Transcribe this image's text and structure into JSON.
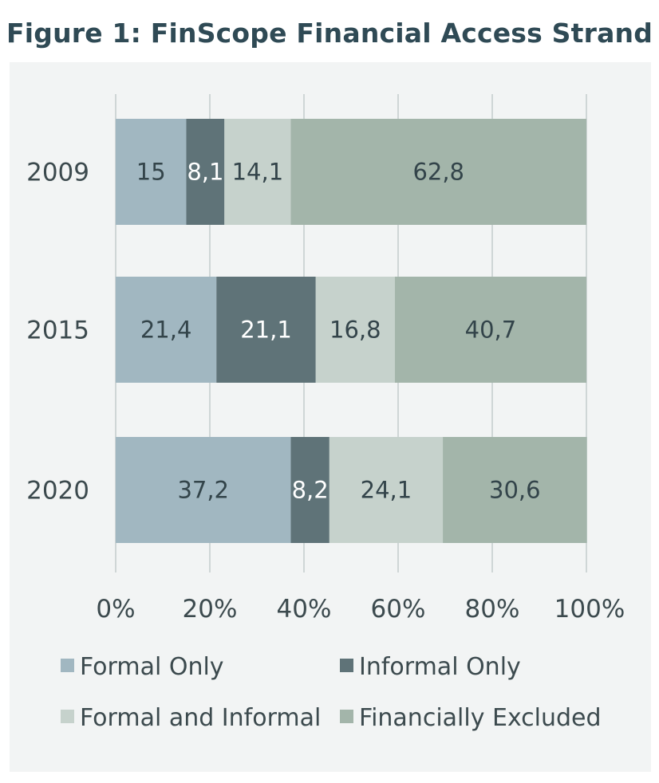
{
  "title": "Figure 1: FinScope Financial Access Strand",
  "chart_data": {
    "type": "bar",
    "orientation": "horizontal",
    "stacked": true,
    "categories": [
      "2009",
      "2015",
      "2020"
    ],
    "series": [
      {
        "name": "Formal Only",
        "color": "#a1b7c1",
        "label_color": "#33444a",
        "values": [
          15,
          21.4,
          37.2
        ],
        "labels": [
          "15",
          "21,4",
          "37,2"
        ]
      },
      {
        "name": "Informal Only",
        "color": "#5f7378",
        "label_color": "#ffffff",
        "values": [
          8.1,
          21.1,
          8.2
        ],
        "labels": [
          "8,1",
          "21,1",
          "8,2"
        ]
      },
      {
        "name": "Formal and Informal",
        "color": "#c6d2cc",
        "label_color": "#33444a",
        "values": [
          14.1,
          16.8,
          24.1
        ],
        "labels": [
          "14,1",
          "16,8",
          "24,1"
        ]
      },
      {
        "name": "Financially Excluded",
        "color": "#a3b5aa",
        "label_color": "#33444a",
        "values": [
          62.8,
          40.7,
          30.6
        ],
        "labels": [
          "62,8",
          "40,7",
          "30,6"
        ]
      }
    ],
    "xlim": [
      0,
      100
    ],
    "xticks": [
      "0%",
      "20%",
      "40%",
      "60%",
      "80%",
      "100%"
    ],
    "grid": true,
    "legend_position": "bottom",
    "title": "Figure 1: FinScope Financial Access Strand",
    "xlabel": "",
    "ylabel": ""
  }
}
